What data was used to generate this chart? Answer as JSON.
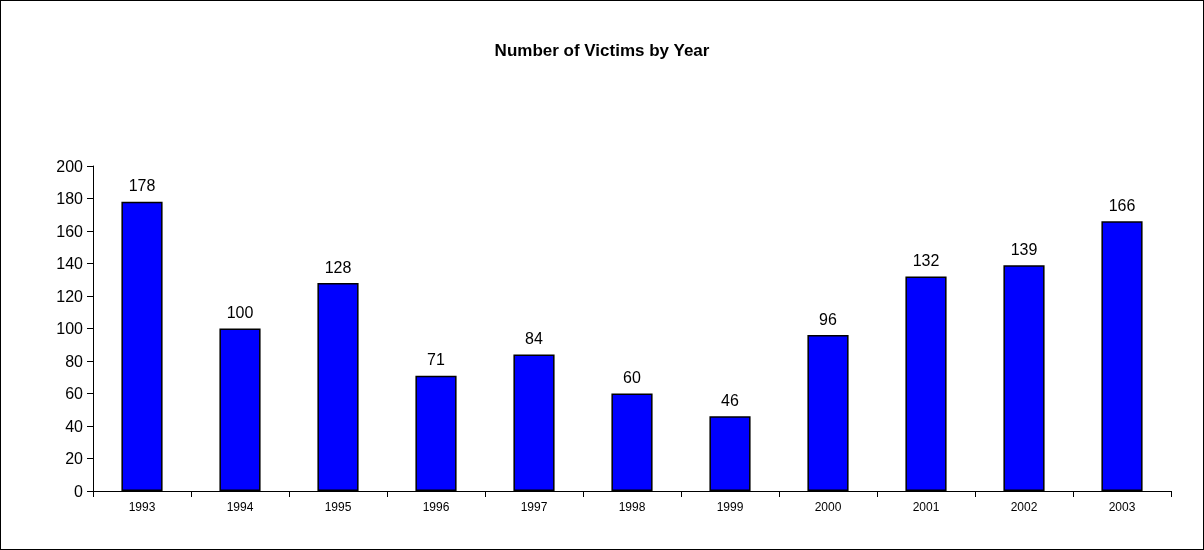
{
  "chart_data": {
    "type": "bar",
    "title": "Number of Victims by Year",
    "categories": [
      "1993",
      "1994",
      "1995",
      "1996",
      "1997",
      "1998",
      "1999",
      "2000",
      "2001",
      "2002",
      "2003"
    ],
    "values": [
      178,
      100,
      128,
      71,
      84,
      60,
      46,
      96,
      132,
      139,
      166
    ],
    "color": "#0000ff",
    "ylim": [
      0,
      200
    ],
    "yticks": [
      0,
      20,
      40,
      60,
      80,
      100,
      120,
      140,
      160,
      180,
      200
    ],
    "grid": false,
    "data_labels": true
  }
}
